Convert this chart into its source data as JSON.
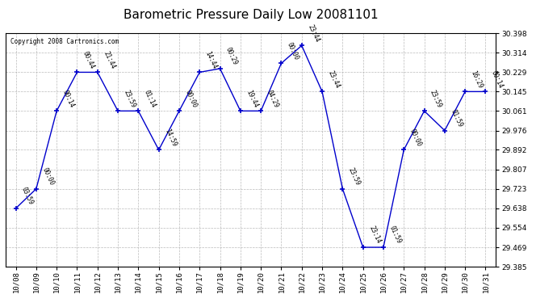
{
  "title": "Barometric Pressure Daily Low 20081101",
  "copyright": "Copyright 2008 Cartronics.com",
  "x_labels": [
    "10/08",
    "10/09",
    "10/10",
    "10/11",
    "10/12",
    "10/13",
    "10/14",
    "10/15",
    "10/16",
    "10/17",
    "10/18",
    "10/19",
    "10/20",
    "10/21",
    "10/22",
    "10/23",
    "10/24",
    "10/25",
    "10/26",
    "10/27",
    "10/28",
    "10/29",
    "10/30",
    "10/31"
  ],
  "y_values": [
    29.638,
    29.723,
    30.061,
    30.229,
    30.229,
    30.061,
    30.061,
    29.892,
    30.061,
    30.229,
    30.245,
    30.061,
    30.061,
    30.268,
    30.345,
    30.145,
    29.723,
    29.469,
    29.469,
    29.892,
    30.061,
    29.976,
    30.145,
    30.145
  ],
  "time_labels": [
    "03:59",
    "00:00",
    "00:14",
    "00:44",
    "21:44",
    "23:59",
    "01:14",
    "14:59",
    "00:00",
    "14:44",
    "00:29",
    "19:44",
    "04:29",
    "00:00",
    "23:44",
    "23:44",
    "23:59",
    "23:14",
    "01:59",
    "00:00",
    "23:59",
    "01:59",
    "16:29",
    "00:14"
  ],
  "y_min": 29.385,
  "y_max": 30.398,
  "y_ticks": [
    29.385,
    29.469,
    29.554,
    29.638,
    29.723,
    29.807,
    29.892,
    29.976,
    30.061,
    30.145,
    30.229,
    30.314,
    30.398
  ],
  "line_color": "#0000cc",
  "marker_color": "#0000cc",
  "background_color": "#ffffff",
  "grid_color": "#aaaaaa",
  "title_fontsize": 11,
  "tick_fontsize": 6.5,
  "annot_fontsize": 5.5
}
